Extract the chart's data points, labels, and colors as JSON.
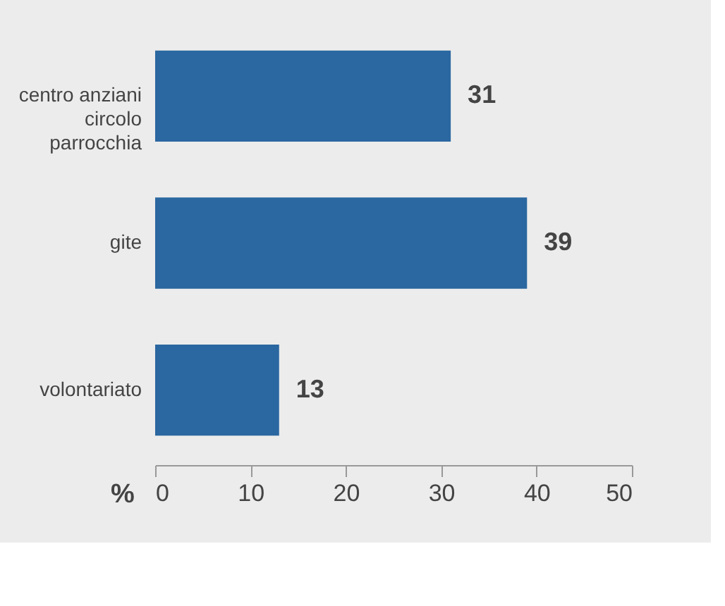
{
  "chart_data": {
    "type": "bar",
    "orientation": "horizontal",
    "categories": [
      "centro anziani\ncircolo\nparrocchia",
      "gite",
      "volontariato"
    ],
    "values": [
      31,
      39,
      13
    ],
    "color": "#2b67a0",
    "xlabel": "%",
    "xlim": [
      0,
      50
    ],
    "xticks": [
      0,
      10,
      20,
      30,
      40,
      50
    ],
    "data_labels": true,
    "grid": false
  }
}
